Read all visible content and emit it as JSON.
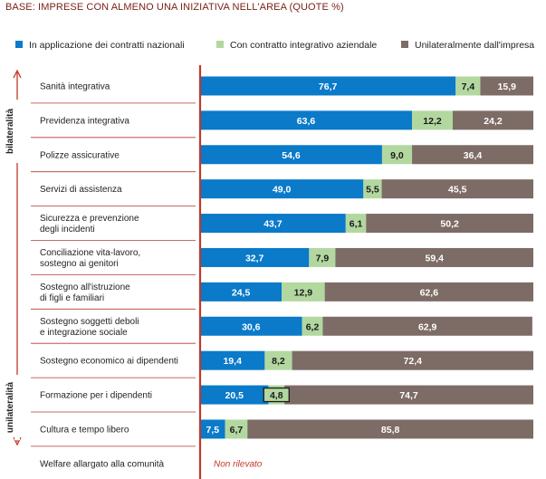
{
  "header": {
    "base_title": "BASE: IMPRESE CON ALMENO UNA INIZIATIVA NELL'AREA (QUOTE %)"
  },
  "colors": {
    "nazionali": "#0a7ac9",
    "aziendale": "#b2d8a0",
    "impresa": "#7d6b66",
    "accent": "#c0392b"
  },
  "legend": [
    {
      "label": "In applicazione dei contratti nazionali",
      "color": "#0a7ac9"
    },
    {
      "label": "Con contratto integrativo aziendale",
      "color": "#b2d8a0"
    },
    {
      "label": "Unilateralmente dall'impresa",
      "color": "#7d6b66"
    }
  ],
  "side_labels": {
    "top": "bilateralità",
    "bottom": "unilateralità"
  },
  "chart_data": {
    "type": "bar",
    "orientation": "horizontal",
    "stacked": true,
    "xlim": [
      0,
      100
    ],
    "categories": [
      "Sanità integrativa",
      "Previdenza integrativa",
      "Polizze assicurative",
      "Servizi di assistenza",
      "Sicurezza e prevenzione\ndegli incidenti",
      "Conciliazione vita-lavoro,\nsostegno ai genitori",
      "Sostegno all'istruzione\ndi figli e familiari",
      "Sostegno soggetti deboli\ne integrazione sociale",
      "Sostegno economico ai dipendenti",
      "Formazione per i dipendenti",
      "Cultura e tempo libero",
      "Welfare allargato alla comunità"
    ],
    "series": [
      {
        "name": "In applicazione dei contratti nazionali",
        "values": [
          76.7,
          63.6,
          54.6,
          49.0,
          43.7,
          32.7,
          24.5,
          30.6,
          19.4,
          20.5,
          7.5,
          null
        ]
      },
      {
        "name": "Con contratto integrativo aziendale",
        "values": [
          7.4,
          12.2,
          9.0,
          5.5,
          6.1,
          7.9,
          12.9,
          6.2,
          8.2,
          4.8,
          6.7,
          null
        ]
      },
      {
        "name": "Unilateralmente dall'impresa",
        "values": [
          15.9,
          24.2,
          36.4,
          45.5,
          50.2,
          59.4,
          62.6,
          62.9,
          72.4,
          74.7,
          85.8,
          null
        ]
      }
    ],
    "value_labels": [
      [
        "76,7",
        "7,4",
        "15,9"
      ],
      [
        "63,6",
        "12,2",
        "24,2"
      ],
      [
        "54,6",
        "9,0",
        "36,4"
      ],
      [
        "49,0",
        "5,5",
        "45,5"
      ],
      [
        "43,7",
        "6,1",
        "50,2"
      ],
      [
        "32,7",
        "7,9",
        "59,4"
      ],
      [
        "24,5",
        "12,9",
        "62,6"
      ],
      [
        "30,6",
        "6,2",
        "62,9"
      ],
      [
        "19,4",
        "8,2",
        "72,4"
      ],
      [
        "20,5",
        "4,8",
        "74,7"
      ],
      [
        "7,5",
        "6,7",
        "85,8"
      ],
      [
        null,
        null,
        null
      ]
    ],
    "not_recorded_label": "Non rilevato"
  }
}
